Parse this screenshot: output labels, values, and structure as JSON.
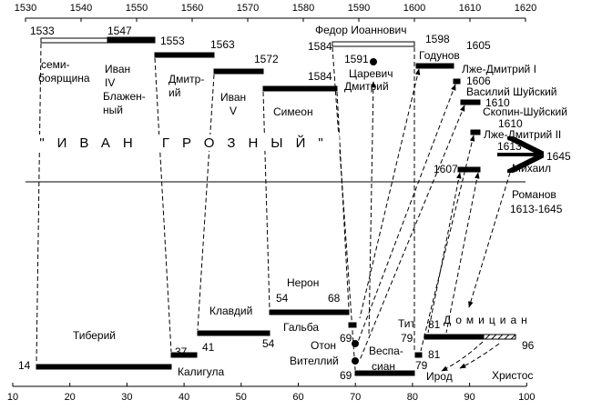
{
  "top_axis": {
    "ticks": [
      1530,
      1540,
      1550,
      1560,
      1570,
      1580,
      1590,
      1600,
      1610,
      1620
    ]
  },
  "bottom_axis": {
    "ticks": [
      10,
      20,
      30,
      40,
      50,
      60,
      70,
      80,
      90,
      100
    ]
  },
  "labels": [
    "1533",
    "1547",
    "семи-",
    "боярщина",
    "Иван",
    "IV",
    "Блажен-",
    "ный",
    "1553",
    "Дмитр-",
    "ий",
    "1563",
    "Иван",
    "V",
    "1572",
    "Симеон",
    "1584",
    "Федор Иоаннович",
    "1584",
    "1598",
    "1591",
    "Царевич",
    "Дмитрий",
    "1605",
    "Годунов",
    "Лже-Дмитрий I",
    "1606",
    "Василий Шуйский",
    "1610",
    "Скопин-Шуйский",
    "1610",
    "Лже-Дмитрий II",
    "1613",
    "1645",
    "Михаил",
    "1607",
    "\"ИВАН ГРОЗНЫЙ\"",
    "Романов",
    "1613-1645",
    "Нерон",
    "54",
    "68",
    "Клавдий",
    "Тиберий",
    "Гальба",
    "69",
    "Отон",
    "Вителлий",
    "69",
    "Веспа-",
    "сиан",
    "Тит",
    "79",
    "81",
    "Домициан",
    "96",
    "81",
    "79",
    "Ирод",
    "Христос",
    "37",
    "Калигула",
    "41",
    "54",
    "14"
  ]
}
